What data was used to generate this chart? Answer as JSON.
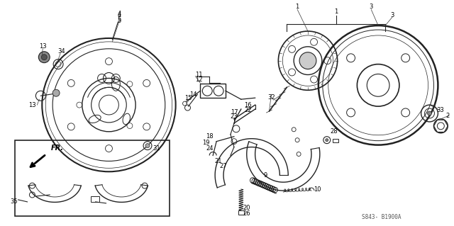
{
  "bg_color": "#ffffff",
  "fig_width": 6.4,
  "fig_height": 3.19,
  "dpi": 100,
  "line_color": "#222222",
  "ref_code": "S843- B1900A",
  "label_fontsize": 6.0,
  "ref_fontsize": 5.5
}
